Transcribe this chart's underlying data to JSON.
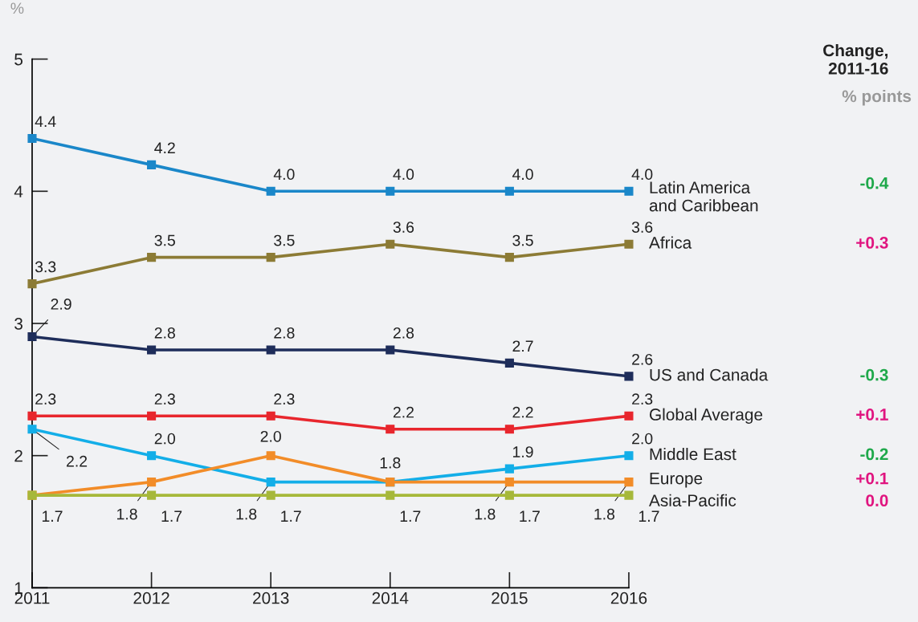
{
  "chart_data": {
    "type": "line",
    "ylabel": "%",
    "x": [
      2011,
      2012,
      2013,
      2014,
      2015,
      2016
    ],
    "xlim": [
      2011,
      2016
    ],
    "xticks": [
      2011,
      2012,
      2013,
      2014,
      2015,
      2016
    ],
    "ylim": [
      1,
      5
    ],
    "yticks": [
      1,
      2,
      3,
      4,
      5
    ],
    "grid": false,
    "legend": false,
    "marker": "square",
    "line_style": "solid",
    "series": [
      {
        "name": "Latin America\nand Caribbean",
        "color": "#1a87c9",
        "values": [
          4.4,
          4.2,
          4.0,
          4.0,
          4.0,
          4.0
        ],
        "value_labels": [
          "4.4",
          "4.2",
          "4.0",
          "4.0",
          "4.0",
          "4.0"
        ]
      },
      {
        "name": "Africa",
        "color": "#8c7b35",
        "values": [
          3.3,
          3.5,
          3.5,
          3.6,
          3.5,
          3.6
        ],
        "value_labels": [
          "3.3",
          "3.5",
          "3.5",
          "3.6",
          "3.5",
          "3.6"
        ]
      },
      {
        "name": "US and Canada",
        "color": "#1e2d5a",
        "values": [
          2.9,
          2.8,
          2.8,
          2.8,
          2.7,
          2.6
        ],
        "value_labels": [
          "2.9",
          "2.8",
          "2.8",
          "2.8",
          "2.7",
          "2.6"
        ]
      },
      {
        "name": "Global Average",
        "color": "#e8262d",
        "values": [
          2.3,
          2.3,
          2.3,
          2.2,
          2.2,
          2.3
        ],
        "value_labels": [
          "2.3",
          "2.3",
          "2.3",
          "2.2",
          "2.2",
          "2.3"
        ]
      },
      {
        "name": "Middle East",
        "color": "#13aee8",
        "values": [
          2.2,
          2.0,
          1.8,
          1.8,
          1.9,
          2.0
        ],
        "value_labels": [
          "2.2",
          "2.0",
          "1.8",
          "1.8",
          "1.9",
          "2.0"
        ]
      },
      {
        "name": "Europe",
        "color": "#f28c28",
        "values": [
          1.7,
          1.8,
          2.0,
          1.8,
          1.8,
          1.8
        ],
        "value_labels": [
          null,
          "1.8",
          "2.0",
          null,
          "1.8",
          "1.8"
        ]
      },
      {
        "name": "Asia-Pacific",
        "color": "#a6b83a",
        "values": [
          1.7,
          1.7,
          1.7,
          1.7,
          1.7,
          1.7
        ],
        "value_labels": [
          "1.7",
          "1.7",
          "1.7",
          "1.7",
          "1.7",
          "1.7"
        ]
      }
    ],
    "annotations": [
      "Change,\n2011-16",
      "% points",
      "-0.4",
      "+0.3",
      "-0.3",
      "+0.1",
      "-0.2",
      "+0.1",
      "0.0"
    ]
  }
}
